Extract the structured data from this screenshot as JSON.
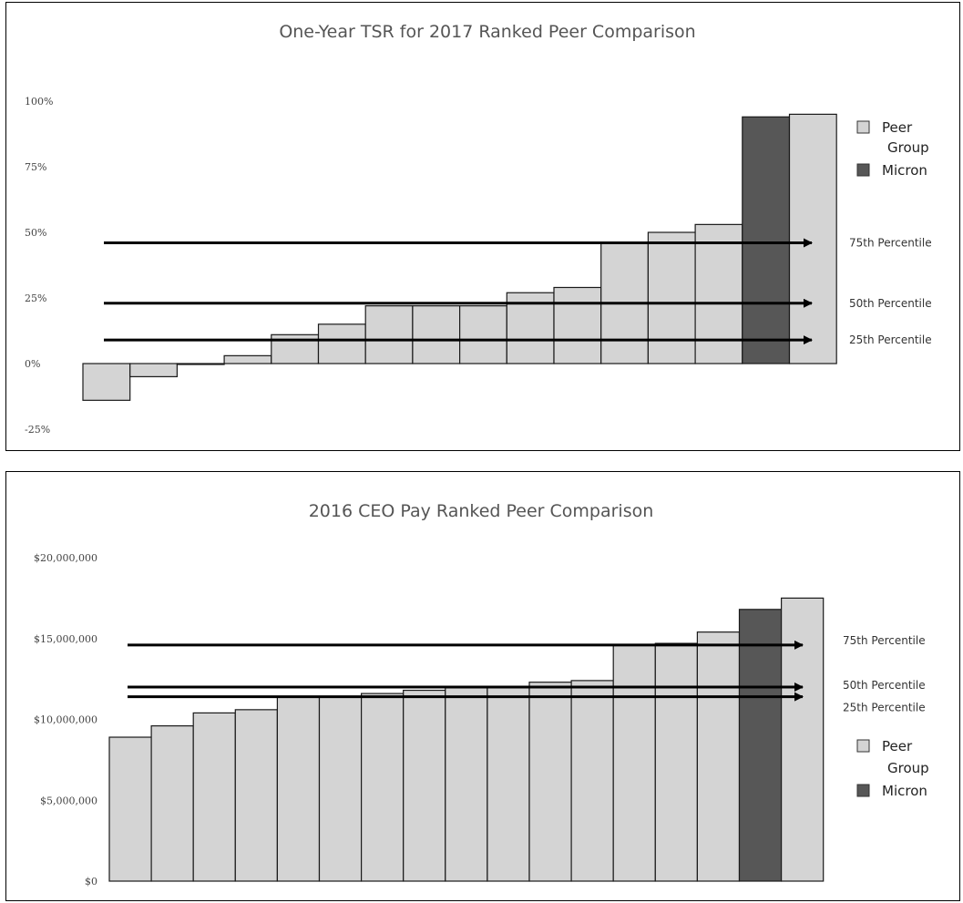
{
  "chart_data": [
    {
      "type": "bar",
      "title": "One-Year TSR for 2017 Ranked Peer Comparison",
      "xlabel": "",
      "ylabel": "",
      "ylim": [
        -25,
        100
      ],
      "y_ticks": [
        "100%",
        "75%",
        "50%",
        "25%",
        "0%",
        "-25%"
      ],
      "y_tick_values": [
        100,
        75,
        50,
        25,
        0,
        -25
      ],
      "legend_position": "right",
      "legend": [
        {
          "label_lines": [
            "Peer",
            "Group"
          ],
          "color": "#d4d4d4"
        },
        {
          "label_lines": [
            "Micron"
          ],
          "color": "#575757"
        }
      ],
      "colors": {
        "peer": "#d4d4d4",
        "micron": "#575757"
      },
      "bars": [
        {
          "group": "peer",
          "value": -14
        },
        {
          "group": "peer",
          "value": -5
        },
        {
          "group": "peer",
          "value": 0
        },
        {
          "group": "peer",
          "value": 3
        },
        {
          "group": "peer",
          "value": 11
        },
        {
          "group": "peer",
          "value": 15
        },
        {
          "group": "peer",
          "value": 22
        },
        {
          "group": "peer",
          "value": 22
        },
        {
          "group": "peer",
          "value": 22
        },
        {
          "group": "peer",
          "value": 27
        },
        {
          "group": "peer",
          "value": 29
        },
        {
          "group": "peer",
          "value": 46
        },
        {
          "group": "peer",
          "value": 50
        },
        {
          "group": "peer",
          "value": 53
        },
        {
          "group": "micron",
          "value": 94
        },
        {
          "group": "peer",
          "value": 95
        }
      ],
      "percentiles": [
        {
          "label": "75th Percentile",
          "value": 46
        },
        {
          "label": "50th Percentile",
          "value": 23
        },
        {
          "label": "25th Percentile",
          "value": 9
        }
      ]
    },
    {
      "type": "bar",
      "title": "2016 CEO Pay Ranked Peer Comparison",
      "xlabel": "",
      "ylabel": "",
      "ylim": [
        0,
        20000000
      ],
      "y_ticks": [
        "$20,000,000",
        "$15,000,000",
        "$10,000,000",
        "$5,000,000",
        "$0"
      ],
      "y_tick_values": [
        20000000,
        15000000,
        10000000,
        5000000,
        0
      ],
      "legend_position": "right",
      "legend": [
        {
          "label_lines": [
            "Peer",
            "Group"
          ],
          "color": "#d4d4d4"
        },
        {
          "label_lines": [
            "Micron"
          ],
          "color": "#575757"
        }
      ],
      "colors": {
        "peer": "#d4d4d4",
        "micron": "#575757"
      },
      "bars": [
        {
          "group": "peer",
          "value": 8900000
        },
        {
          "group": "peer",
          "value": 9600000
        },
        {
          "group": "peer",
          "value": 10400000
        },
        {
          "group": "peer",
          "value": 10600000
        },
        {
          "group": "peer",
          "value": 11400000
        },
        {
          "group": "peer",
          "value": 11400000
        },
        {
          "group": "peer",
          "value": 11600000
        },
        {
          "group": "peer",
          "value": 11800000
        },
        {
          "group": "peer",
          "value": 12000000
        },
        {
          "group": "peer",
          "value": 12000000
        },
        {
          "group": "peer",
          "value": 12300000
        },
        {
          "group": "peer",
          "value": 12400000
        },
        {
          "group": "peer",
          "value": 14600000
        },
        {
          "group": "peer",
          "value": 14700000
        },
        {
          "group": "peer",
          "value": 15400000
        },
        {
          "group": "micron",
          "value": 16800000
        },
        {
          "group": "peer",
          "value": 17500000
        }
      ],
      "percentiles": [
        {
          "label": "75th Percentile",
          "value": 14600000
        },
        {
          "label": "50th Percentile",
          "value": 12000000
        },
        {
          "label": "25th Percentile",
          "value": 11400000
        }
      ]
    }
  ]
}
